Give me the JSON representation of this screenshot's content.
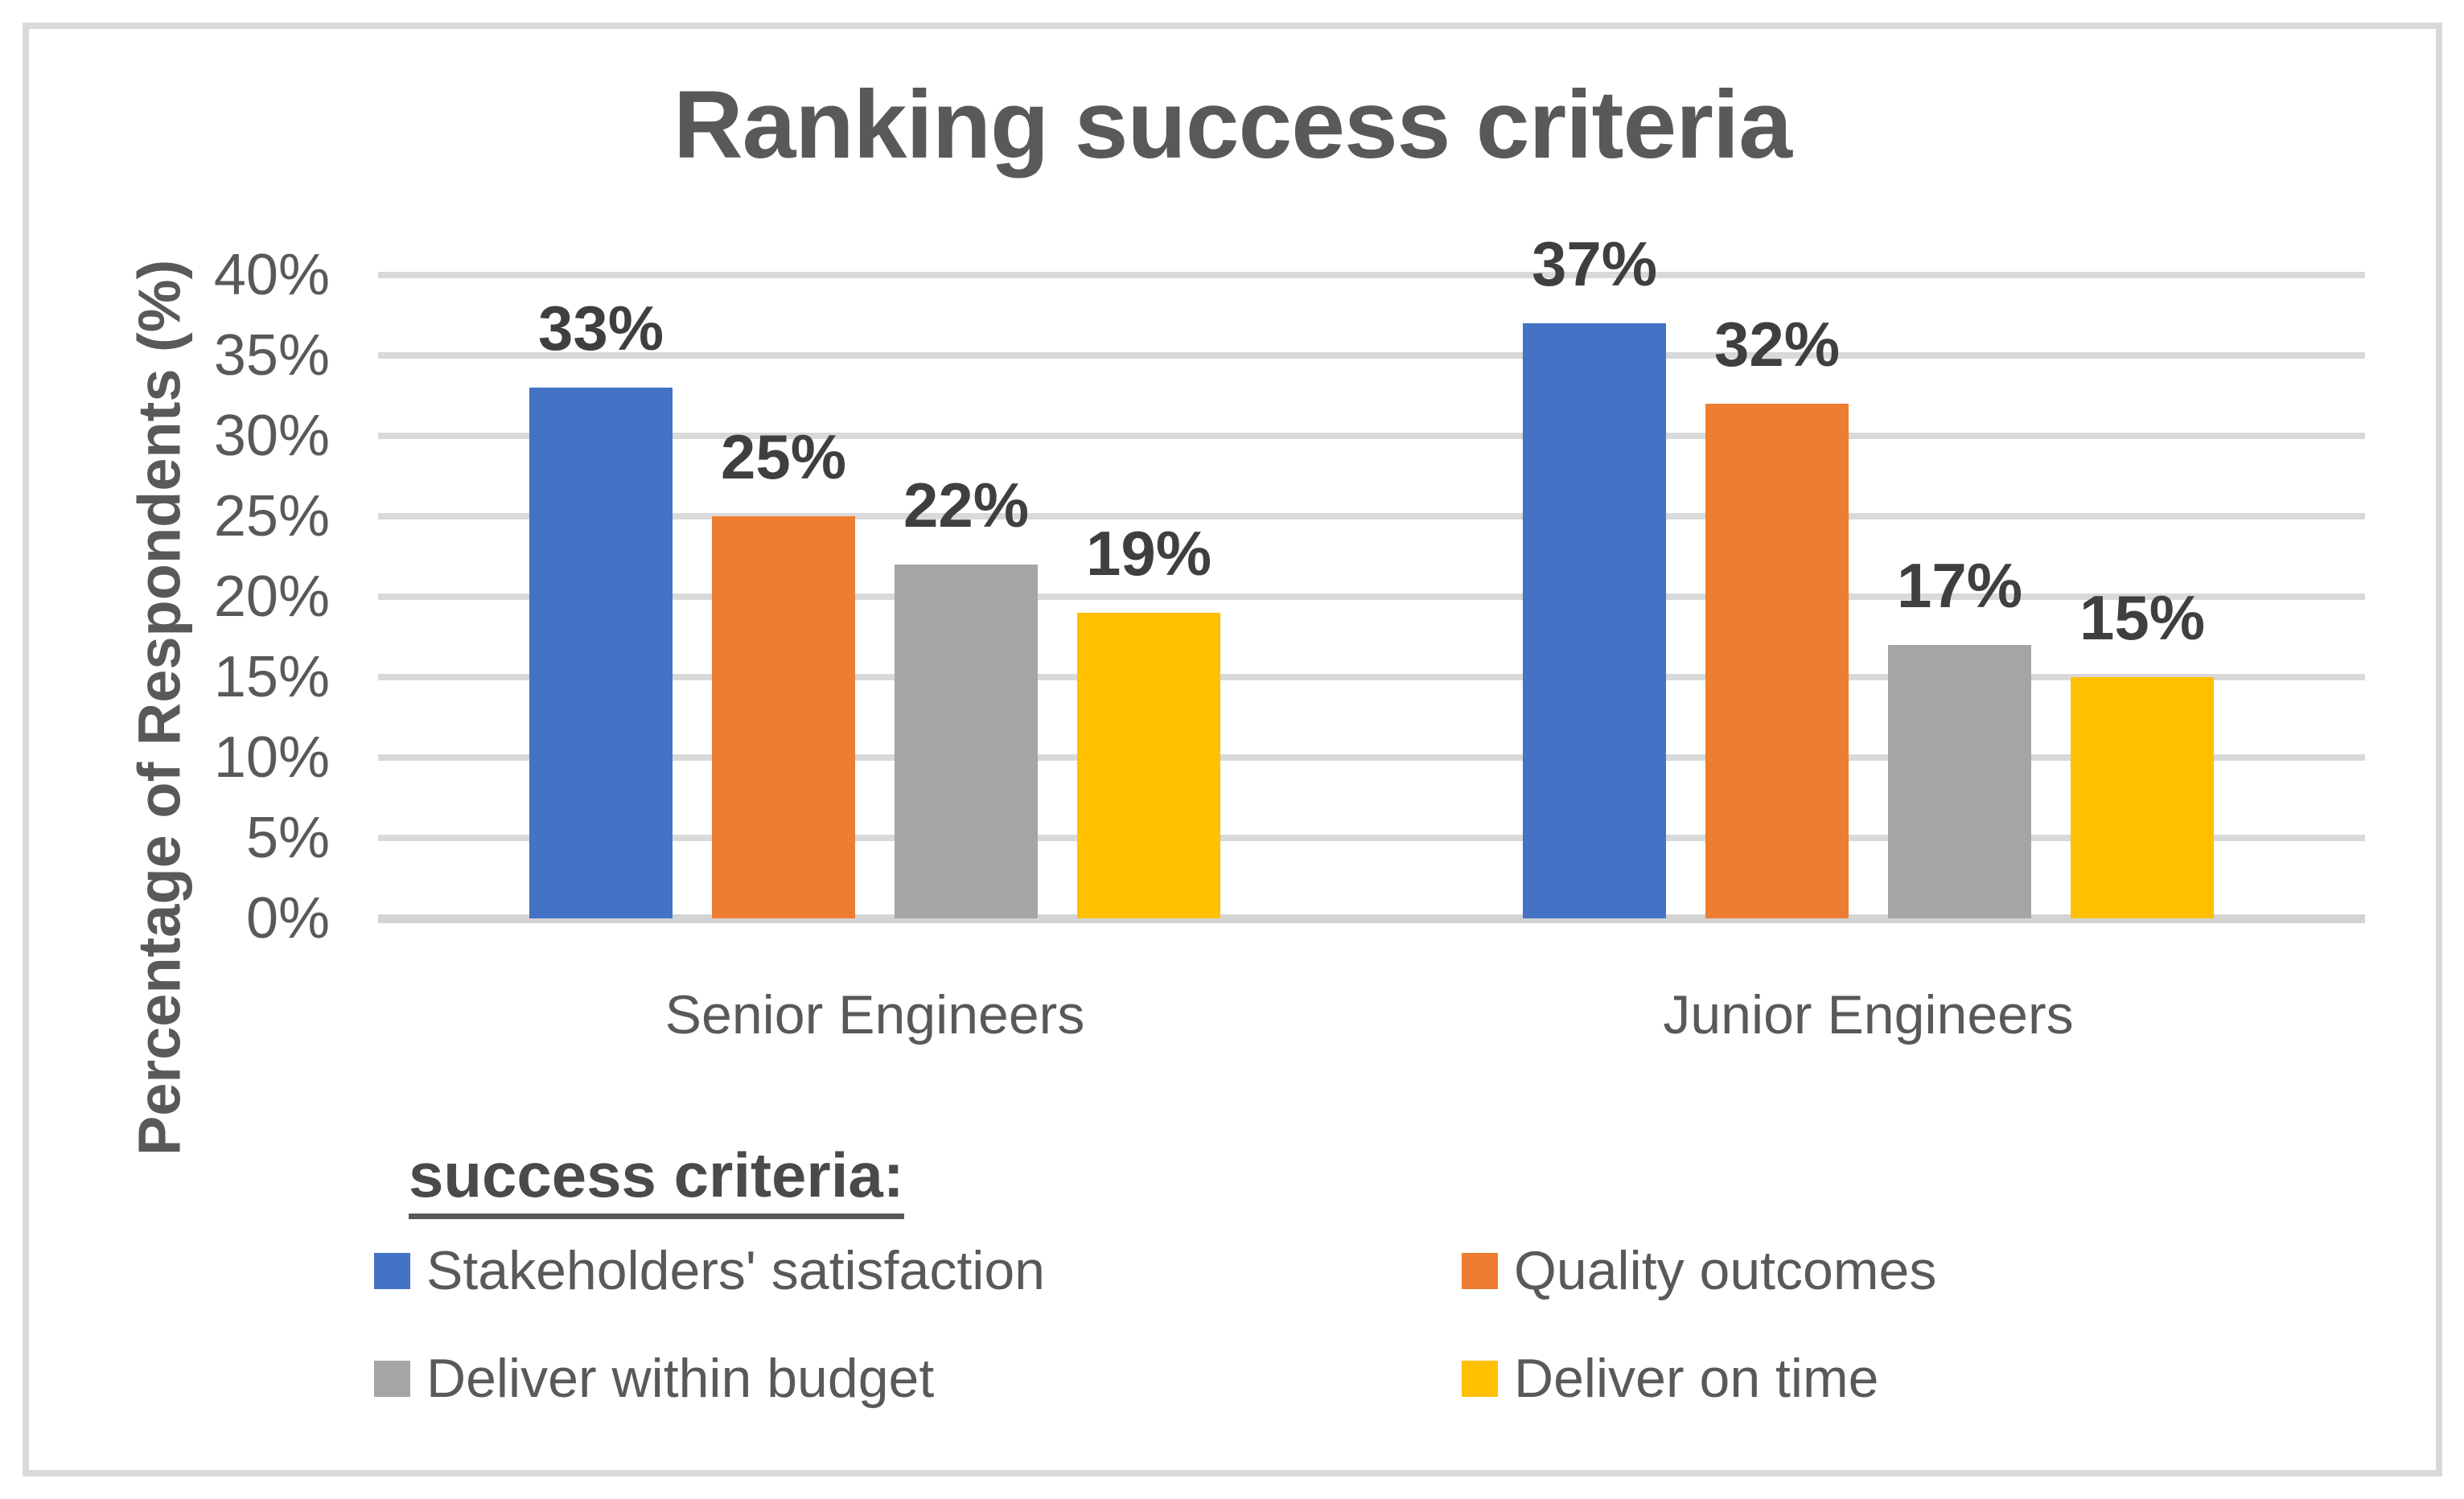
{
  "chart_data": {
    "type": "bar",
    "title": "Ranking success criteria",
    "xlabel": "",
    "ylabel": "Percentage of Respondents (%)",
    "categories": [
      "Senior Engineers",
      "Junior Engineers"
    ],
    "series": [
      {
        "name": "Stakeholders' satisfaction",
        "color": "#4472C4",
        "values": [
          33,
          37
        ]
      },
      {
        "name": "Quality outcomes",
        "color": "#ED7D31",
        "values": [
          25,
          32
        ]
      },
      {
        "name": "Deliver within budget",
        "color": "#A5A5A5",
        "values": [
          22,
          17
        ]
      },
      {
        "name": "Deliver on time",
        "color": "#FFC000",
        "values": [
          19,
          15
        ]
      }
    ],
    "data_label_suffix": "%",
    "ylim": [
      0,
      40
    ],
    "ytick_step": 5,
    "ytick_suffix": "%",
    "grid": true,
    "legend_position": "bottom",
    "legend_heading": "success criteria:"
  },
  "colors": {
    "gridline": "#D9D9D9",
    "axis_line": "#D4D4D4",
    "frame_border": "#D9D9D9",
    "text": "#595959",
    "data_label": "#3F3F3F"
  }
}
